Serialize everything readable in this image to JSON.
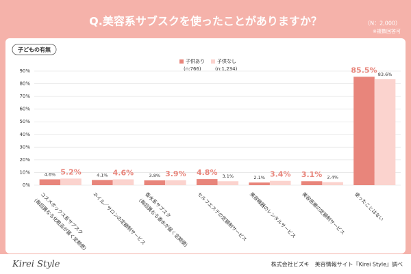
{
  "chart_data": {
    "type": "bar",
    "title": "Q.美容系サブスクを使ったことがありますか？",
    "sample_note": "（N：2,000）",
    "note": "※複数回答可",
    "badge": "子どもの有無",
    "categories": [
      [
        "コスメボックス系サブスク",
        "(毎回異なる化粧品が届く定期便)"
      ],
      [
        "ネイル／サロンの定額制サービス"
      ],
      [
        "香水系サブスク",
        "(毎回異なる香水が届く定期便)"
      ],
      [
        "セルフエステの定額制サービス"
      ],
      [
        "美容機器のレンタルサービス"
      ],
      [
        "美容医療の定額制サービス"
      ],
      [
        "使ったことはない"
      ]
    ],
    "series": [
      {
        "name": "子供あり",
        "sample": "(n:766)",
        "color": "#e8857b",
        "values": [
          4.6,
          4.1,
          3.8,
          4.8,
          2.1,
          3.1,
          85.5
        ],
        "value_labels": [
          "4.6%",
          "4.1%",
          "3.8%",
          "4.8%",
          "2.1%",
          "3.1%",
          "85.5%"
        ]
      },
      {
        "name": "子供なし",
        "sample": "(n:1,234)",
        "color": "#fbd3ce",
        "values": [
          5.2,
          4.6,
          3.9,
          3.1,
          3.4,
          2.4,
          83.6
        ],
        "value_labels": [
          "5.2%",
          "4.6%",
          "3.9%",
          "3.1%",
          "3.4%",
          "2.4%",
          "83.6%"
        ]
      }
    ],
    "ylim": [
      0,
      90
    ],
    "yticks": [
      {
        "value": 0,
        "label": "0%"
      },
      {
        "value": 10,
        "label": "10%"
      },
      {
        "value": 20,
        "label": "20%"
      },
      {
        "value": 30,
        "label": "30%"
      },
      {
        "value": 40,
        "label": "40%"
      },
      {
        "value": 50,
        "label": "50%"
      },
      {
        "value": 60,
        "label": "60%"
      },
      {
        "value": 70,
        "label": "70%"
      },
      {
        "value": 80,
        "label": "80%"
      },
      {
        "value": 90,
        "label": "90%"
      }
    ],
    "grid": true,
    "footer_logo": "Kirei Style",
    "footer_credit": "株式会社ビズキ　美容情報サイト『Kirei Style』調べ"
  }
}
